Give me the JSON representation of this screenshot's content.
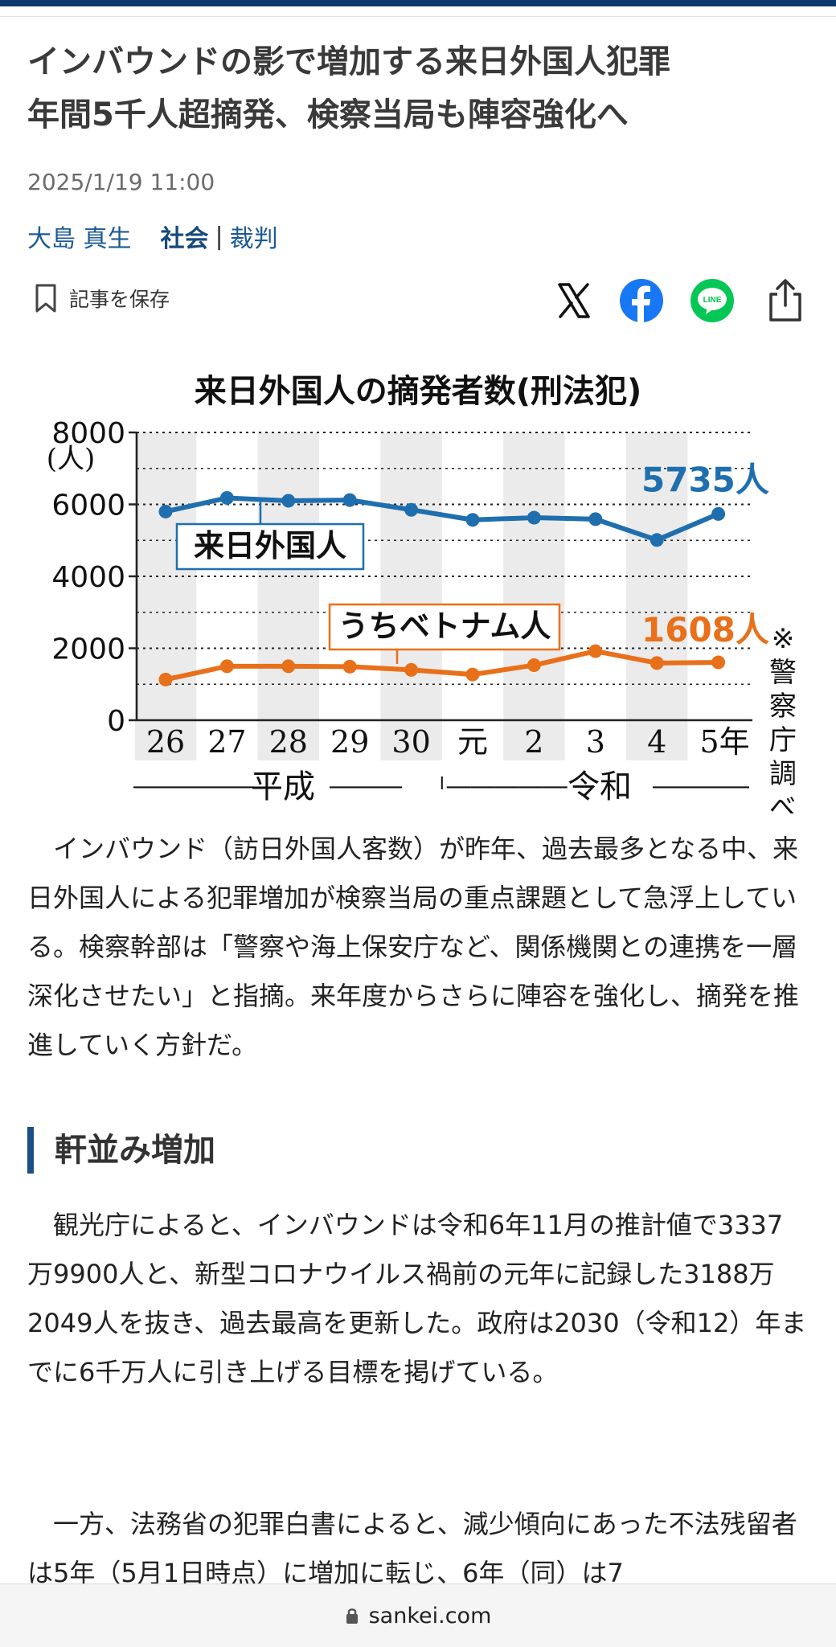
{
  "article": {
    "title_line1": "インバウンドの影で増加する来日外国人犯罪",
    "title_line2": "年間5千人超摘発、検察当局も陣容強化へ",
    "date": "2025/1/19 11:00",
    "author": "大島 真生",
    "category": "社会",
    "separator": "|",
    "subcategory": "裁判"
  },
  "actions": {
    "save_label": "記事を保存",
    "share_icons": [
      "x-icon",
      "facebook-icon",
      "line-icon",
      "share-icon"
    ]
  },
  "chart_data": {
    "type": "line",
    "title": "来日外国人の摘発者数(刑法犯)",
    "ylabel": "(人)",
    "ylim": [
      0,
      8000
    ],
    "y_ticks": [
      "8000",
      "6000",
      "4000",
      "2000",
      "0"
    ],
    "x": [
      "26",
      "27",
      "28",
      "29",
      "30",
      "元",
      "2",
      "3",
      "4",
      "5年"
    ],
    "eras": [
      {
        "label": "平成",
        "line_left": "―――――",
        "line_right": "―――"
      },
      {
        "label": "令和",
        "line_left": "―――――",
        "line_right": "――――"
      }
    ],
    "series": [
      {
        "name": "来日外国人",
        "color": "#1f6fae",
        "end_label": "5735人",
        "values": [
          5800,
          6180,
          6100,
          6120,
          5850,
          5570,
          5630,
          5590,
          5010,
          5735
        ]
      },
      {
        "name": "うちベトナム人",
        "color": "#e8701b",
        "end_label": "1608人",
        "values": [
          1130,
          1500,
          1500,
          1490,
          1400,
          1270,
          1530,
          1920,
          1590,
          1608
        ]
      }
    ],
    "grid": true,
    "source_note": "※警察庁調べ"
  },
  "body": {
    "para1": "インバウンド（訪日外国人客数）が昨年、過去最多となる中、来日外国人による犯罪増加が検察当局の重点課題として急浮上している。検察幹部は「警察や海上保安庁など、関係機関との連携を一層深化させたい」と指摘。来年度からさらに陣容を強化し、摘発を推進していく方針だ。",
    "subhead": "軒並み増加",
    "para2": "観光庁によると、インバウンドは令和6年11月の推計値で3337万9900人と、新型コロナウイルス禍前の元年に記録した3188万2049人を抜き、過去最高を更新した。政府は2030（令和12）年までに6千万人に引き上げる目標を掲げている。",
    "para3": "一方、法務省の犯罪白書によると、減少傾向にあった不法残留者は5年（5月1日時点）に増加に転じ、6年（同）は7"
  },
  "browser": {
    "domain": "sankei.com"
  },
  "colors": {
    "brand": "#0c3b6b",
    "link": "#1d5a94",
    "series_blue": "#1f6fae",
    "series_orange": "#e8701b"
  }
}
